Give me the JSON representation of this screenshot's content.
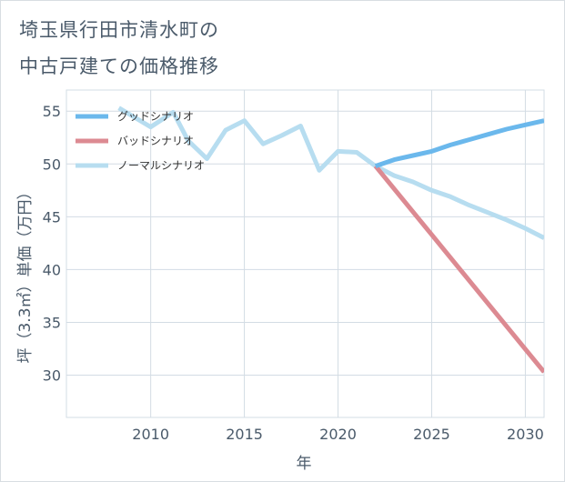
{
  "title": {
    "line1": "埼玉県行田市清水町の",
    "line2": "中古戸建ての価格推移"
  },
  "chart_data": {
    "type": "line",
    "xlabel": "年",
    "ylabel": "坪（3.3㎡）単価（万円）",
    "xlim": [
      2005.5,
      2031
    ],
    "ylim": [
      26,
      57
    ],
    "xticks": [
      2010,
      2015,
      2020,
      2025,
      2030
    ],
    "yticks": [
      30,
      35,
      40,
      45,
      50,
      55
    ],
    "grid": true,
    "legend_position": "top-left",
    "series": [
      {
        "name": "グッドシナリオ",
        "color": "#6bb8ec",
        "x": [
          2022,
          2023,
          2024,
          2025,
          2026,
          2027,
          2028,
          2029,
          2030,
          2031
        ],
        "values": [
          49.8,
          50.4,
          50.8,
          51.2,
          51.8,
          52.3,
          52.8,
          53.3,
          53.7,
          54.1
        ]
      },
      {
        "name": "バッドシナリオ",
        "color": "#dc8a92",
        "x": [
          2022,
          2025,
          2028,
          2031
        ],
        "values": [
          49.8,
          43.3,
          36.8,
          30.3
        ]
      },
      {
        "name": "ノーマルシナリオ",
        "color": "#b7ddf0",
        "x": [
          2008.3,
          2010,
          2011.2,
          2012,
          2013,
          2014,
          2015,
          2016,
          2017,
          2018,
          2019,
          2020,
          2021,
          2022,
          2023,
          2024,
          2025,
          2026,
          2027,
          2028,
          2029,
          2030,
          2031
        ],
        "values": [
          55.3,
          53.5,
          54.9,
          52.2,
          50.5,
          53.2,
          54.1,
          51.9,
          52.7,
          53.6,
          49.4,
          51.2,
          51.1,
          49.8,
          48.9,
          48.3,
          47.5,
          46.9,
          46.1,
          45.4,
          44.7,
          43.9,
          43.0
        ]
      }
    ]
  }
}
